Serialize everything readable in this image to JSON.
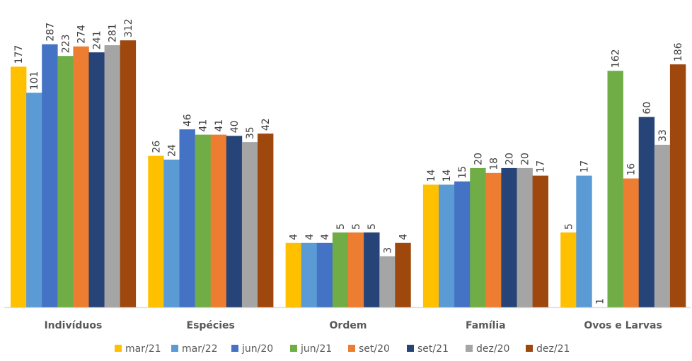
{
  "chart_data": {
    "type": "bar",
    "title": "",
    "xlabel": "",
    "ylabel": "",
    "yscale": "log",
    "ylim": [
      1,
      700
    ],
    "grid": false,
    "legend_position": "bottom",
    "categories": [
      "Indivíduos",
      "Espécies",
      "Ordem",
      "Família",
      "Ovos e Larvas"
    ],
    "series": [
      {
        "name": "mar/21",
        "color": "#FFC000",
        "values": [
          177,
          26,
          4,
          14,
          5
        ]
      },
      {
        "name": "mar/22",
        "color": "#5B9BD5",
        "values": [
          101,
          24,
          4,
          14,
          17
        ]
      },
      {
        "name": "jun/20",
        "color": "#4472C4",
        "values": [
          287,
          46,
          4,
          15,
          1
        ]
      },
      {
        "name": "jun/21",
        "color": "#70AD47",
        "values": [
          223,
          41,
          5,
          20,
          162
        ]
      },
      {
        "name": "set/20",
        "color": "#ED7D31",
        "values": [
          274,
          41,
          5,
          18,
          16
        ]
      },
      {
        "name": "set/21",
        "color": "#264478",
        "values": [
          241,
          40,
          5,
          20,
          60
        ]
      },
      {
        "name": "dez/20",
        "color": "#A5A5A5",
        "values": [
          281,
          35,
          3,
          20,
          33
        ]
      },
      {
        "name": "dez/21",
        "color": "#9E480E",
        "values": [
          312,
          42,
          4,
          17,
          186
        ]
      }
    ]
  }
}
